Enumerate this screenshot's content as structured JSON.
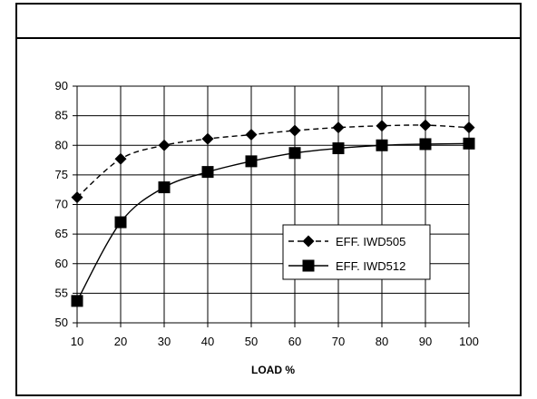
{
  "chart_data": {
    "type": "line",
    "title": "",
    "xlabel": "LOAD %",
    "ylabel": "",
    "x": [
      10,
      20,
      30,
      40,
      50,
      60,
      70,
      80,
      90,
      100
    ],
    "xlim": [
      10,
      100
    ],
    "ylim": [
      50,
      90
    ],
    "xticks": [
      "10",
      "20",
      "30",
      "40",
      "50",
      "60",
      "70",
      "80",
      "90",
      "100"
    ],
    "yticks": [
      "50",
      "55",
      "60",
      "65",
      "70",
      "75",
      "80",
      "85",
      "90"
    ],
    "grid": true,
    "legend_position": "center-right",
    "series": [
      {
        "name": "EFF. IWD505",
        "marker": "diamond",
        "line_style": "dashed",
        "color": "#000000",
        "values": [
          71.2,
          77.7,
          80.0,
          81.1,
          81.8,
          82.5,
          83.0,
          83.3,
          83.4,
          83.0
        ]
      },
      {
        "name": "EFF. IWD512",
        "marker": "square",
        "line_style": "solid",
        "color": "#000000",
        "values": [
          53.7,
          67.0,
          72.9,
          75.5,
          77.3,
          78.7,
          79.5,
          80.0,
          80.2,
          80.3
        ]
      }
    ]
  }
}
